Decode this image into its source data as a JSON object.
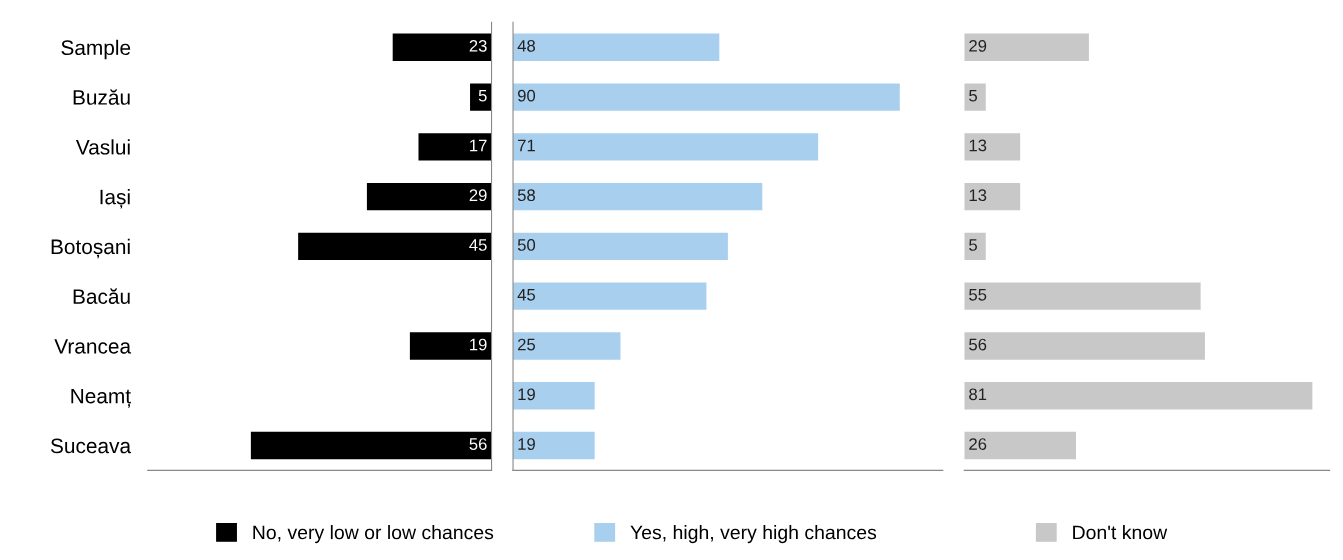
{
  "chart_data": [
    {
      "type": "bar",
      "orientation": "horizontal",
      "categories": [
        "Sample",
        "Buzău",
        "Vaslui",
        "Iași",
        "Botoșani",
        "Bacău",
        "Vrancea",
        "Neamț",
        "Suceava"
      ],
      "series": [
        {
          "name": "No, very low or low chances",
          "color": "#000000",
          "values": [
            23,
            5,
            17,
            29,
            45,
            null,
            19,
            null,
            56
          ]
        }
      ],
      "xlim": [
        80,
        0
      ],
      "data_labels": true,
      "tick_labels": "y",
      "legend": "bottom"
    },
    {
      "type": "bar",
      "orientation": "horizontal",
      "categories": [
        null,
        null,
        null,
        null,
        null,
        null,
        null,
        null,
        null
      ],
      "series": [
        {
          "name": "Yes, high, very high chances",
          "color": "#a9cfee",
          "values": [
            48,
            90,
            71,
            58,
            50,
            45,
            25,
            19,
            19
          ]
        }
      ],
      "xlim": [
        0,
        100
      ],
      "data_labels": true,
      "tick_labels": false,
      "legend": "bottom"
    },
    {
      "type": "bar",
      "orientation": "horizontal",
      "categories": [
        null,
        null,
        null,
        null,
        null,
        null,
        null,
        null,
        null
      ],
      "series": [
        {
          "name": "Don't know",
          "color": "#c8c8c8",
          "values": [
            29,
            5,
            13,
            13,
            5,
            55,
            56,
            81,
            26
          ]
        }
      ],
      "xlim": [
        0,
        85
      ],
      "data_labels": true,
      "tick_labels": false,
      "legend": "bottom"
    }
  ]
}
